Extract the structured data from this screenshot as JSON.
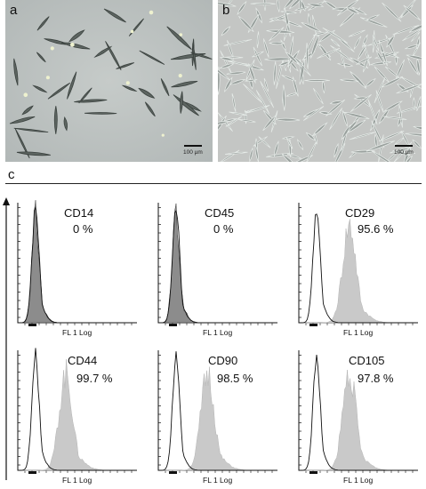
{
  "panels": {
    "a": {
      "letter": "a",
      "scale_bar": "100 µm"
    },
    "b": {
      "letter": "b",
      "scale_bar": "100 µm"
    },
    "c": {
      "letter": "c"
    }
  },
  "chart_data": {
    "type": "histogram-grid",
    "xlabel": "FL 1 Log",
    "histograms": [
      {
        "marker": "CD14",
        "percent": "0 %",
        "value": 0,
        "positive": false
      },
      {
        "marker": "CD45",
        "percent": "0 %",
        "value": 0,
        "positive": false
      },
      {
        "marker": "CD29",
        "percent": "95.6 %",
        "value": 95.6,
        "positive": true
      },
      {
        "marker": "CD44",
        "percent": "99.7 %",
        "value": 99.7,
        "positive": true
      },
      {
        "marker": "CD90",
        "percent": "98.5 %",
        "value": 98.5,
        "positive": true
      },
      {
        "marker": "CD105",
        "percent": "97.8 %",
        "value": 97.8,
        "positive": true
      }
    ],
    "colors": {
      "isotype_outline": "#111111",
      "sample_fill": "#c9c9c9",
      "negative_fill": "#8c8c8c"
    }
  }
}
